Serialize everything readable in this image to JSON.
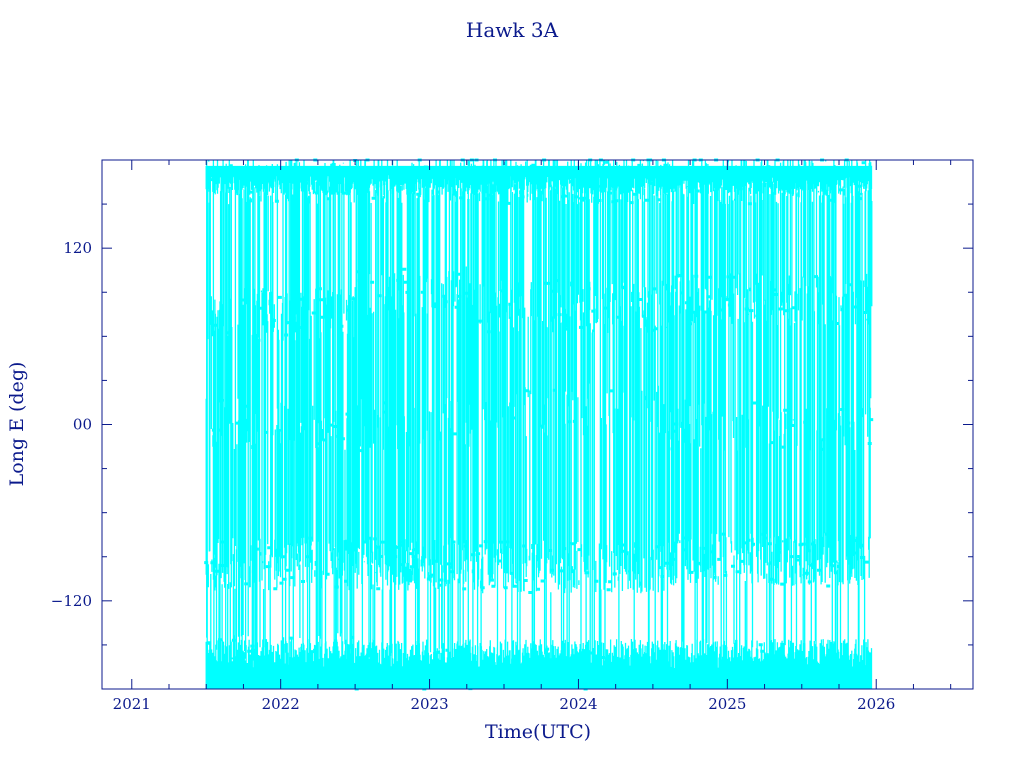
{
  "chart_data": {
    "type": "line",
    "title": "Hawk 3A",
    "xlabel": "Time(UTC)",
    "ylabel": "Long E (deg)",
    "xlim": [
      2020.8,
      2026.65
    ],
    "ylim": [
      -180,
      180
    ],
    "x_ticks": [
      2021,
      2022,
      2023,
      2024,
      2025,
      2026
    ],
    "x_tick_labels": [
      "2021",
      "2022",
      "2023",
      "2024",
      "2025",
      "2026"
    ],
    "y_ticks": [
      -120,
      0,
      120
    ],
    "y_tick_labels": [
      "−120",
      "00",
      "120"
    ],
    "grid": false,
    "legend": "none",
    "series_color": "#00ffff",
    "axis_color": "#0b1a8c",
    "series": [
      {
        "x": [
          2021.5,
          2025.97
        ],
        "y": [
          -180,
          180
        ]
      }
    ]
  }
}
